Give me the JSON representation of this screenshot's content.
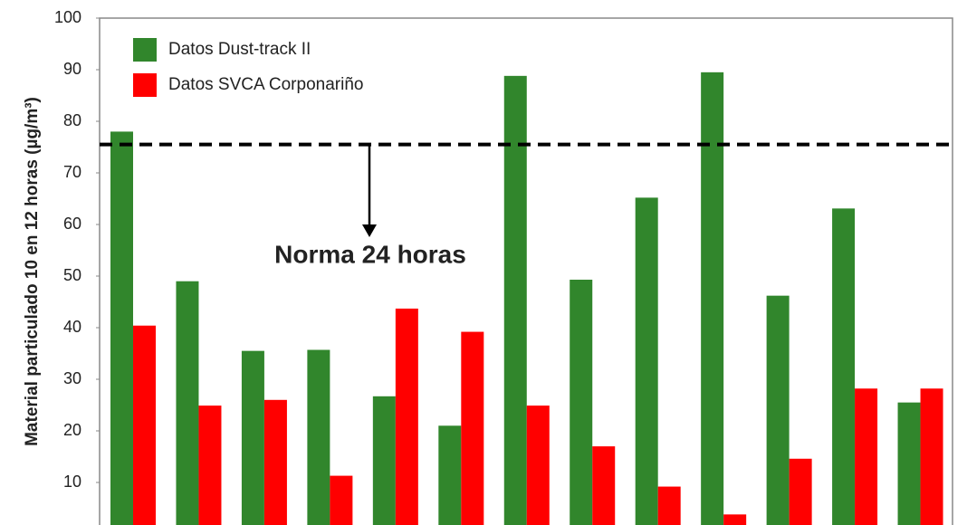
{
  "chart_data": {
    "type": "bar",
    "y_label": "Material particulado 10 en 12 horas (µg/m³)",
    "categories": [
      null,
      null,
      null,
      null,
      null,
      null,
      null,
      null,
      null,
      null,
      null,
      null,
      null
    ],
    "series": [
      {
        "name": "Datos Dust-track II",
        "color": "#31862c",
        "values": [
          78,
          49,
          35.5,
          35.7,
          26.7,
          21,
          88.8,
          49.3,
          65.2,
          89.5,
          46.2,
          63.1,
          25.5
        ]
      },
      {
        "name": "Datos SVCA Corponariño",
        "color": "#ff0000",
        "values": [
          40.4,
          24.9,
          26,
          11.3,
          43.7,
          39.2,
          24.9,
          17,
          9.2,
          3.8,
          14.6,
          28.2,
          28.2
        ]
      }
    ],
    "reference_line": {
      "value": 75.5,
      "label": "Norma 24 horas"
    },
    "ylim": [
      0,
      100
    ],
    "yticks": [
      10,
      20,
      30,
      40,
      50,
      60,
      70,
      80,
      90,
      100
    ],
    "legend": "top-left"
  }
}
